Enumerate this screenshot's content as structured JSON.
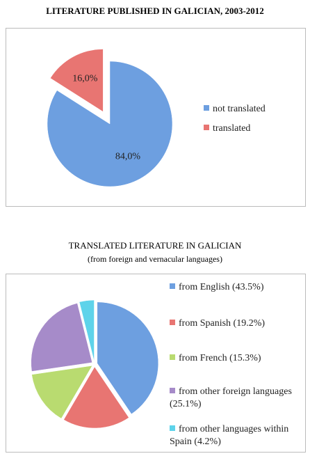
{
  "chart_data": [
    {
      "type": "pie",
      "title": "LITERATURE PUBLISHED IN GALICIAN, 2003-2012",
      "categories": [
        "not translated",
        "translated"
      ],
      "values": [
        84.0,
        16.0
      ],
      "value_labels": [
        "84,0%",
        "16,0%"
      ],
      "colors": [
        "#6d9fe0",
        "#e87572"
      ],
      "legend": "right"
    },
    {
      "type": "pie",
      "title": "TRANSLATED LITERATURE IN GALICIAN",
      "subtitle": "(from foreign and vernacular languages)",
      "categories": [
        "from English (43.5%)",
        "from Spanish (19.2%)",
        "from French (15.3%)",
        "from other foreign languages (25.1%)",
        "from other languages within Spain (4.2%)"
      ],
      "values": [
        43.5,
        19.2,
        15.3,
        25.1,
        4.2
      ],
      "colors": [
        "#6d9fe0",
        "#e87572",
        "#b9db70",
        "#a68bc9",
        "#5ed3ea"
      ],
      "legend": "right"
    }
  ]
}
